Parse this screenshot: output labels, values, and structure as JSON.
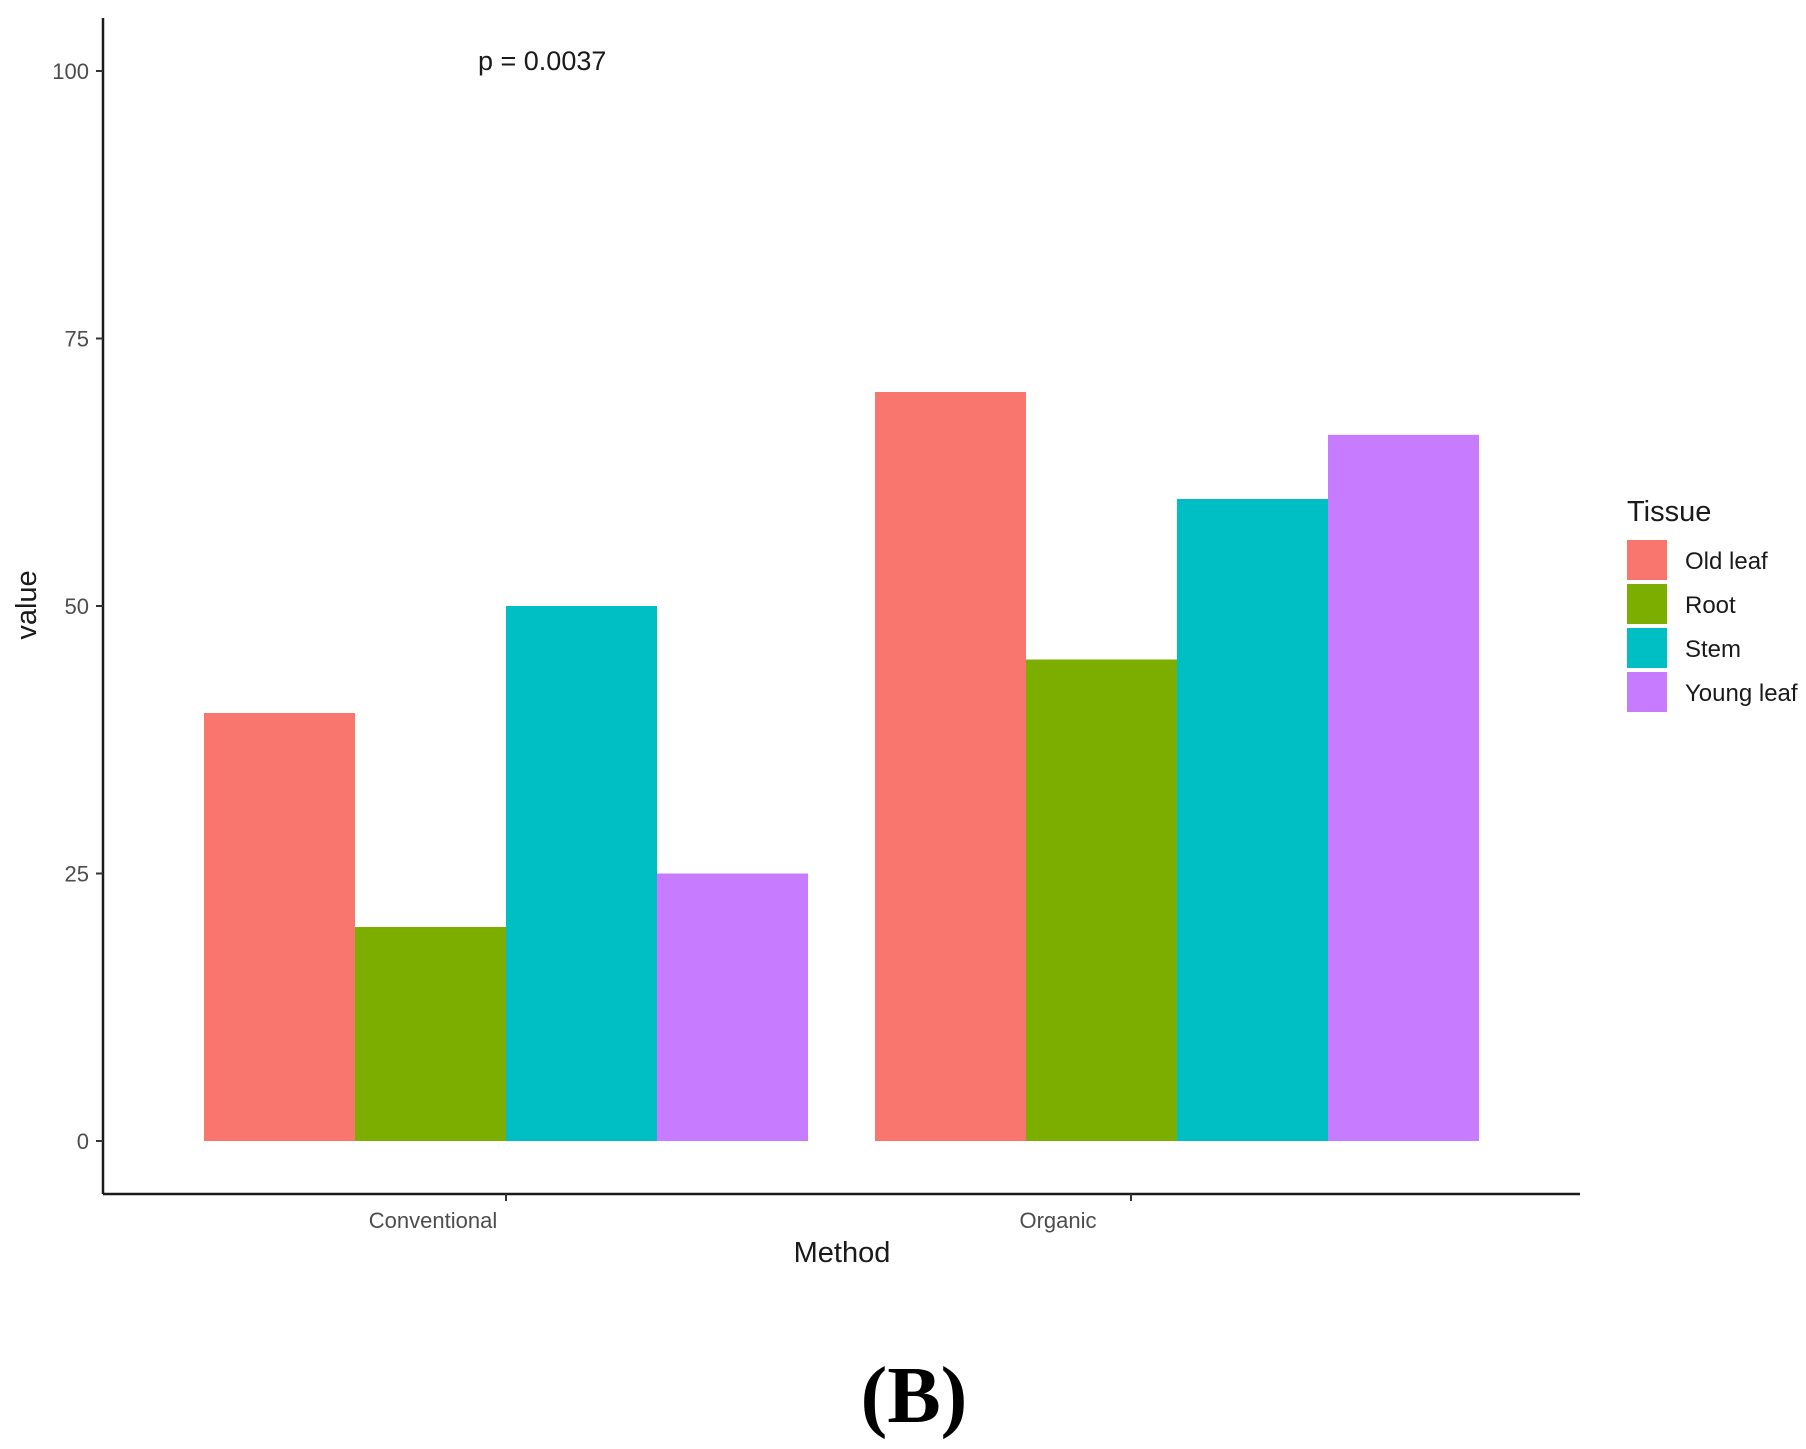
{
  "chart_data": {
    "type": "bar",
    "categories": [
      "Conventional",
      "Organic"
    ],
    "series": [
      {
        "name": "Old leaf",
        "color": "#F8766D",
        "values": [
          40,
          70
        ]
      },
      {
        "name": "Root",
        "color": "#7CAE00",
        "values": [
          20,
          45
        ]
      },
      {
        "name": "Stem",
        "color": "#00BFC4",
        "values": [
          50,
          60
        ]
      },
      {
        "name": "Young leaf",
        "color": "#C77CFF",
        "values": [
          25,
          66
        ]
      }
    ],
    "xlabel": "Method",
    "ylabel": "value",
    "ylim": [
      0,
      100
    ],
    "yticks": [
      0,
      25,
      50,
      75,
      100
    ],
    "legend": {
      "title": "Tissue",
      "placement": "right"
    },
    "annotation": "p = 0.0037",
    "panel_label": "(B)",
    "grid": false
  }
}
